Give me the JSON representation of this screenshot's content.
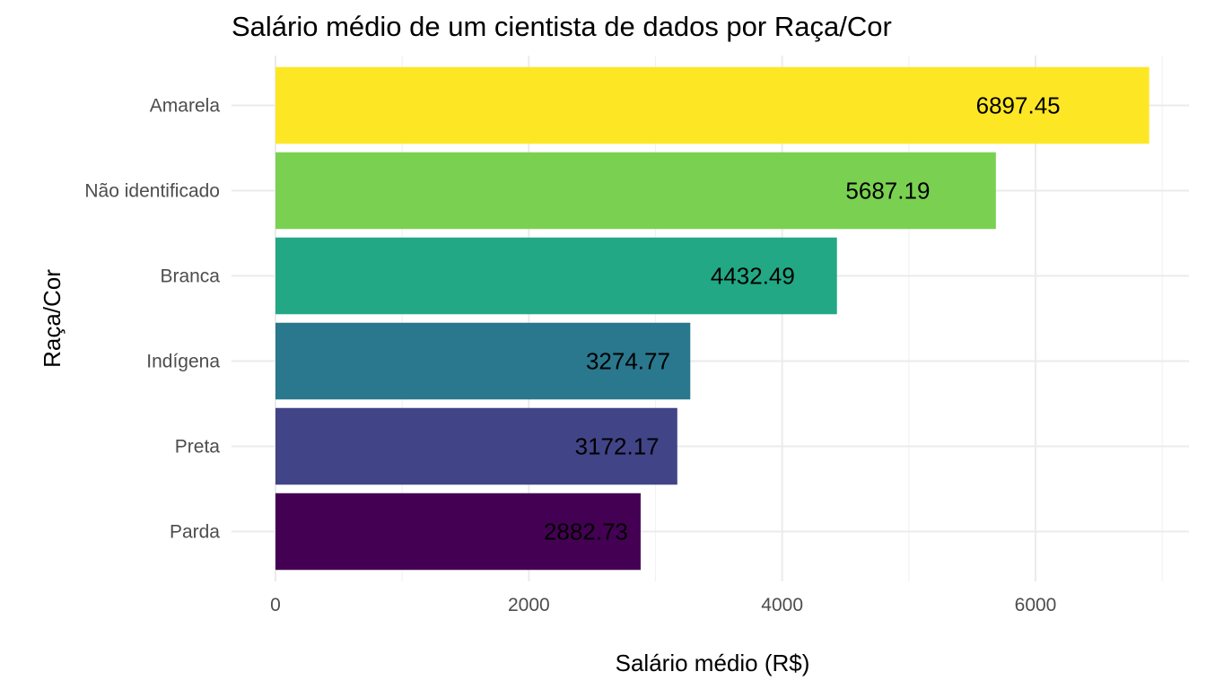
{
  "chart_data": {
    "type": "bar",
    "orientation": "horizontal",
    "title": "Salário médio de um cientista de dados por Raça/Cor",
    "xlabel": "Salário médio (R$)",
    "ylabel": "Raça/Cor",
    "categories": [
      "Amarela",
      "Não identificado",
      "Branca",
      "Indígena",
      "Preta",
      "Parda"
    ],
    "values": [
      6897.45,
      5687.19,
      4432.49,
      3274.77,
      3172.17,
      2882.73
    ],
    "data_labels": [
      "6897.45",
      "5687.19",
      "4432.49",
      "3274.77",
      "3172.17",
      "2882.73"
    ],
    "colors": [
      "#FDE725",
      "#7AD151",
      "#22A884",
      "#2A788E",
      "#414487",
      "#440154"
    ],
    "xlim": [
      0,
      7000
    ],
    "xticks": [
      0,
      2000,
      4000,
      6000
    ],
    "xtick_labels": [
      "0",
      "2000",
      "4000",
      "6000"
    ],
    "grid": true,
    "legend": "none"
  }
}
